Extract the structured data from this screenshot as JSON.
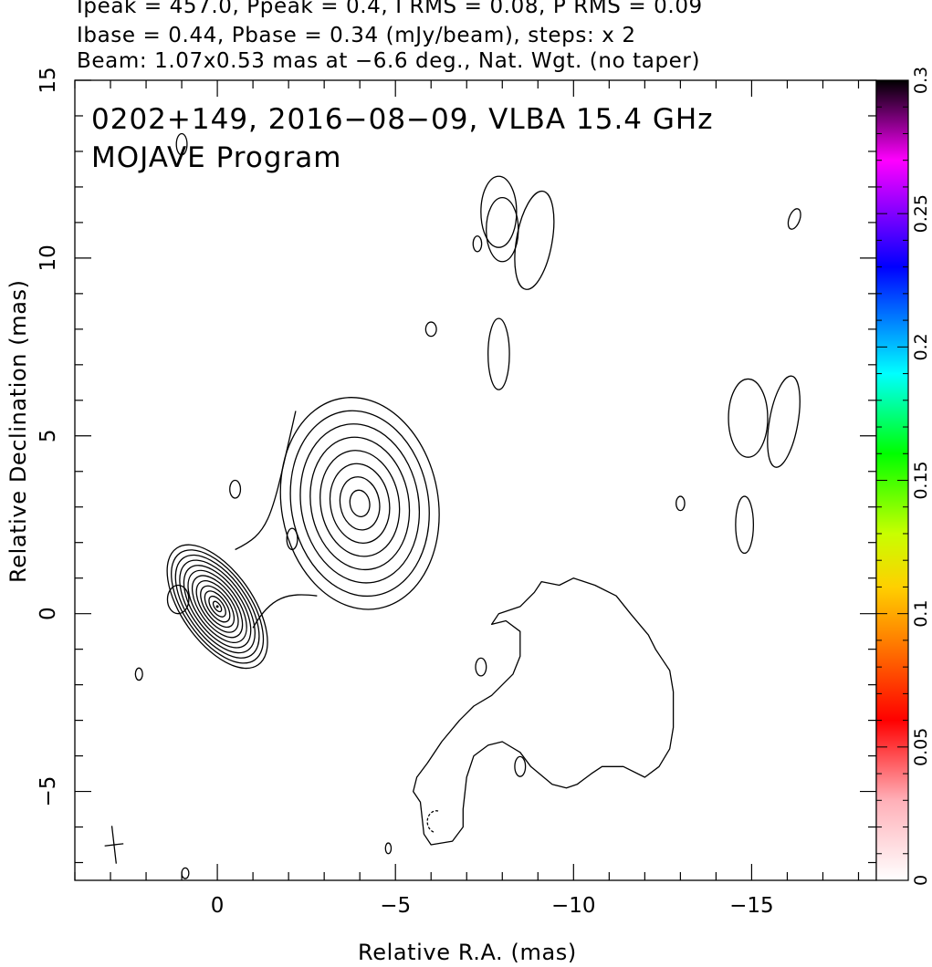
{
  "header": {
    "line1": "Ipeak = 457.0, Ppeak = 0.4, I RMS = 0.08, P RMS = 0.09",
    "line2": "Ibase = 0.44, Pbase = 0.34 (mJy/beam), steps: x 2",
    "line3": "Beam: 1.07x0.53 mas at −6.6 deg., Nat. Wgt. (no taper)"
  },
  "annotation": {
    "line1": "0202+149, 2016−08−09, VLBA 15.4 GHz",
    "line2": "MOJAVE Program"
  },
  "chart_data": {
    "type": "contour",
    "title": "0202+149, 2016−08−09, VLBA 15.4 GHz",
    "subtitle": "MOJAVE Program",
    "xlabel": "Relative R.A. (mas)",
    "ylabel": "Relative Declination (mas)",
    "xlim": [
      4,
      -18.5
    ],
    "ylim": [
      -7.5,
      15
    ],
    "xticks": [
      0,
      -5,
      -10,
      -15
    ],
    "xtick_labels": [
      "0",
      "−5",
      "−10",
      "−15"
    ],
    "yticks": [
      -5,
      0,
      5,
      10,
      15
    ],
    "ytick_labels": [
      "−5",
      "0",
      "5",
      "10",
      "15"
    ],
    "ipeak_mJy_per_beam": 457.0,
    "ppeak_mJy_per_beam": 0.4,
    "i_rms": 0.08,
    "p_rms": 0.09,
    "ibase": 0.44,
    "pbase": 0.34,
    "contour_step_factor": 2,
    "beam": {
      "major_mas": 1.07,
      "minor_mas": 0.53,
      "pa_deg": -6.6
    },
    "colorbar": {
      "range": [
        0,
        0.3
      ],
      "tick_values": [
        0,
        0.05,
        0.1,
        0.15,
        0.2,
        0.25,
        0.3
      ],
      "tick_labels": [
        "0",
        "0.05",
        "0.1",
        "0.15",
        "0.2",
        "0.25",
        "0.3"
      ]
    },
    "components": [
      {
        "name": "core",
        "x": 0,
        "y": 0.2,
        "levels": 12,
        "rx": 1.0,
        "ry": 2.0,
        "angle": -35
      },
      {
        "name": "knot",
        "x": -4.0,
        "y": 3.1,
        "levels": 8,
        "rx": 2.2,
        "ry": 3.0,
        "angle": -10
      }
    ],
    "islands": [
      {
        "x": -8.0,
        "y": 10.8,
        "rx": 0.45,
        "ry": 0.9,
        "rot": 0
      },
      {
        "x": -8.9,
        "y": 10.5,
        "rx": 0.5,
        "ry": 1.4,
        "rot": 10
      },
      {
        "x": -7.9,
        "y": 11.3,
        "rx": 0.5,
        "ry": 1.0,
        "rot": 0
      },
      {
        "x": -7.3,
        "y": 10.4,
        "rx": 0.12,
        "ry": 0.22,
        "rot": 0
      },
      {
        "x": -6.0,
        "y": 8.0,
        "rx": 0.15,
        "ry": 0.2,
        "rot": 0
      },
      {
        "x": -7.9,
        "y": 7.3,
        "rx": 0.3,
        "ry": 1.0,
        "rot": 0
      },
      {
        "x": -16.2,
        "y": 11.1,
        "rx": 0.15,
        "ry": 0.3,
        "rot": 20
      },
      {
        "x": -14.9,
        "y": 5.5,
        "rx": 0.55,
        "ry": 1.1,
        "rot": 0
      },
      {
        "x": -15.9,
        "y": 5.4,
        "rx": 0.4,
        "ry": 1.3,
        "rot": 10
      },
      {
        "x": -13.0,
        "y": 3.1,
        "rx": 0.12,
        "ry": 0.2,
        "rot": 0
      },
      {
        "x": -14.8,
        "y": 2.5,
        "rx": 0.25,
        "ry": 0.8,
        "rot": 0
      },
      {
        "x": 1.0,
        "y": 13.2,
        "rx": 0.15,
        "ry": 0.3,
        "rot": 0
      },
      {
        "x": -0.5,
        "y": 3.5,
        "rx": 0.15,
        "ry": 0.25,
        "rot": 0
      },
      {
        "x": -2.1,
        "y": 2.1,
        "rx": 0.15,
        "ry": 0.3,
        "rot": 0
      },
      {
        "x": 1.1,
        "y": 0.4,
        "rx": 0.3,
        "ry": 0.4,
        "rot": 0
      },
      {
        "x": 2.2,
        "y": -1.7,
        "rx": 0.1,
        "ry": 0.17,
        "rot": 0
      },
      {
        "x": -7.4,
        "y": -1.5,
        "rx": 0.15,
        "ry": 0.25,
        "rot": 0
      },
      {
        "x": -8.5,
        "y": -4.3,
        "rx": 0.15,
        "ry": 0.28,
        "rot": 0
      },
      {
        "x": -4.8,
        "y": -6.6,
        "rx": 0.08,
        "ry": 0.15,
        "rot": 0
      },
      {
        "x": 0.9,
        "y": -7.3,
        "rx": 0.1,
        "ry": 0.15,
        "rot": 0
      }
    ],
    "diffuse_outline": [
      [
        -7.7,
        -0.3
      ],
      [
        -7.9,
        0.0
      ],
      [
        -8.5,
        0.2
      ],
      [
        -8.9,
        0.6
      ],
      [
        -9.1,
        0.9
      ],
      [
        -9.6,
        0.8
      ],
      [
        -10.0,
        1.0
      ],
      [
        -10.6,
        0.8
      ],
      [
        -11.2,
        0.5
      ],
      [
        -11.6,
        0.0
      ],
      [
        -12.1,
        -0.6
      ],
      [
        -12.3,
        -1.0
      ],
      [
        -12.5,
        -1.3
      ],
      [
        -12.7,
        -1.6
      ],
      [
        -12.8,
        -2.2
      ],
      [
        -12.8,
        -3.2
      ],
      [
        -12.7,
        -3.8
      ],
      [
        -12.4,
        -4.3
      ],
      [
        -12.0,
        -4.6
      ],
      [
        -11.4,
        -4.3
      ],
      [
        -10.8,
        -4.3
      ],
      [
        -10.5,
        -4.5
      ],
      [
        -10.1,
        -4.8
      ],
      [
        -9.8,
        -4.9
      ],
      [
        -9.4,
        -4.8
      ],
      [
        -8.8,
        -4.3
      ],
      [
        -8.5,
        -3.9
      ],
      [
        -8.0,
        -3.6
      ],
      [
        -7.6,
        -3.7
      ],
      [
        -7.2,
        -4.0
      ],
      [
        -7.0,
        -4.6
      ],
      [
        -6.9,
        -5.5
      ],
      [
        -6.9,
        -6.0
      ],
      [
        -6.6,
        -6.4
      ],
      [
        -6.0,
        -6.5
      ],
      [
        -5.8,
        -6.2
      ],
      [
        -5.7,
        -5.3
      ],
      [
        -5.5,
        -5.0
      ],
      [
        -5.6,
        -4.6
      ],
      [
        -5.9,
        -4.2
      ],
      [
        -6.3,
        -3.6
      ],
      [
        -6.8,
        -3.0
      ],
      [
        -7.2,
        -2.6
      ],
      [
        -7.7,
        -2.3
      ],
      [
        -8.3,
        -1.7
      ],
      [
        -8.5,
        -1.2
      ],
      [
        -8.5,
        -0.5
      ],
      [
        -8.1,
        -0.2
      ],
      [
        -7.7,
        -0.3
      ]
    ],
    "arc_marks": [
      {
        "x": -5.95,
        "y": -5.85,
        "rx": 0.25,
        "ry": 0.3
      }
    ]
  }
}
